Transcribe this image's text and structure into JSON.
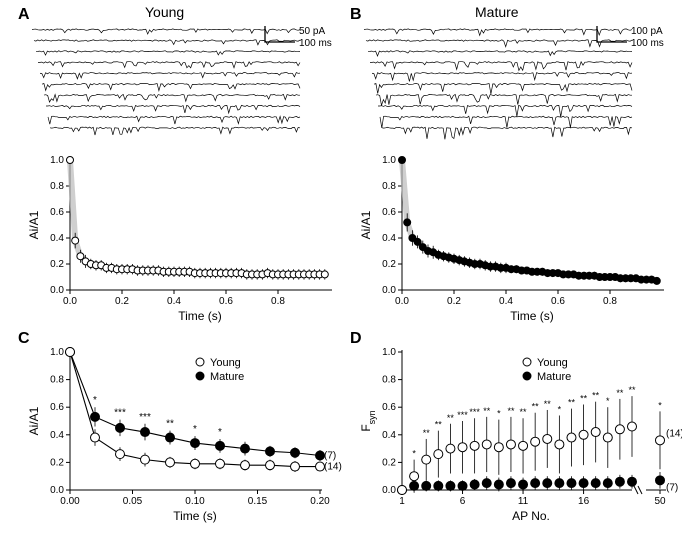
{
  "colors": {
    "bg": "#ffffff",
    "line": "#000000",
    "marker_open_fill": "#ffffff",
    "marker_closed_fill": "#000000",
    "marker_stroke": "#000000",
    "fit_gray": "#bbbbbb",
    "text": "#000000"
  },
  "typography": {
    "panel_label_pt": 16,
    "col_title_pt": 14,
    "axis_label_pt": 12,
    "tick_pt": 10,
    "legend_pt": 11
  },
  "panels": {
    "A": {
      "label": "A",
      "title": "Young",
      "scalebar": {
        "v_label": "50 pA",
        "h_label": "100 ms"
      },
      "n_sweeps": 10,
      "sweep_len": 200
    },
    "B": {
      "label": "B",
      "title": "Mature",
      "scalebar": {
        "v_label": "100 pA",
        "h_label": "100 ms"
      },
      "n_sweeps": 10,
      "sweep_len": 200
    },
    "C": {
      "label": "C",
      "legend": [
        {
          "marker": "open",
          "label": "Young",
          "series": "young"
        },
        {
          "marker": "closed",
          "label": "Mature",
          "series": "mature"
        }
      ],
      "n_young": "(14)",
      "n_mature": "(7)"
    },
    "D": {
      "label": "D",
      "legend": [
        {
          "marker": "open",
          "label": "Young",
          "series": "young"
        },
        {
          "marker": "closed",
          "label": "Mature",
          "series": "mature"
        }
      ],
      "n_young": "(14)",
      "n_mature": "(7)"
    }
  },
  "chart_Atrain": {
    "type": "line",
    "marker": "open",
    "xlim": [
      0.0,
      1.0
    ],
    "ylim": [
      0.0,
      1.0
    ],
    "xticks": [
      0.0,
      0.2,
      0.4,
      0.6,
      0.8
    ],
    "yticks": [
      0.0,
      0.2,
      0.4,
      0.6,
      0.8,
      1.0
    ],
    "xlabel": "Time (s)",
    "ylabel": "Ai/A1",
    "tick_fontsize": 10,
    "label_fontsize": 12,
    "marker_size": 3.5,
    "errorbar_color": "#000000",
    "x": [
      0.0,
      0.02,
      0.04,
      0.06,
      0.08,
      0.1,
      0.12,
      0.14,
      0.16,
      0.18,
      0.2,
      0.22,
      0.24,
      0.26,
      0.28,
      0.3,
      0.32,
      0.34,
      0.36,
      0.38,
      0.4,
      0.42,
      0.44,
      0.46,
      0.48,
      0.5,
      0.52,
      0.54,
      0.56,
      0.58,
      0.6,
      0.62,
      0.64,
      0.66,
      0.68,
      0.7,
      0.72,
      0.74,
      0.76,
      0.78,
      0.8,
      0.82,
      0.84,
      0.86,
      0.88,
      0.9,
      0.92,
      0.94,
      0.96,
      0.98
    ],
    "y": [
      1.0,
      0.38,
      0.26,
      0.22,
      0.2,
      0.19,
      0.19,
      0.17,
      0.17,
      0.16,
      0.16,
      0.16,
      0.16,
      0.15,
      0.15,
      0.15,
      0.15,
      0.15,
      0.14,
      0.14,
      0.14,
      0.14,
      0.14,
      0.14,
      0.13,
      0.13,
      0.13,
      0.13,
      0.13,
      0.13,
      0.13,
      0.13,
      0.13,
      0.13,
      0.12,
      0.12,
      0.12,
      0.12,
      0.13,
      0.12,
      0.12,
      0.12,
      0.12,
      0.12,
      0.12,
      0.12,
      0.12,
      0.12,
      0.12,
      0.12
    ],
    "err": [
      0.0,
      0.06,
      0.05,
      0.05,
      0.04,
      0.04,
      0.04,
      0.04,
      0.04,
      0.04,
      0.04,
      0.04,
      0.04,
      0.04,
      0.04,
      0.04,
      0.04,
      0.04,
      0.04,
      0.04,
      0.04,
      0.04,
      0.04,
      0.04,
      0.04,
      0.04,
      0.04,
      0.04,
      0.04,
      0.04,
      0.04,
      0.04,
      0.04,
      0.04,
      0.04,
      0.04,
      0.04,
      0.04,
      0.04,
      0.04,
      0.04,
      0.04,
      0.04,
      0.04,
      0.04,
      0.04,
      0.04,
      0.04,
      0.04,
      0.04
    ]
  },
  "chart_Btrain": {
    "type": "line",
    "marker": "closed",
    "xlim": [
      0.0,
      1.0
    ],
    "ylim": [
      0.0,
      1.0
    ],
    "xticks": [
      0.0,
      0.2,
      0.4,
      0.6,
      0.8
    ],
    "yticks": [
      0.0,
      0.2,
      0.4,
      0.6,
      0.8,
      1.0
    ],
    "xlabel": "Time (s)",
    "ylabel": "Ai/A1",
    "tick_fontsize": 10,
    "label_fontsize": 12,
    "marker_size": 3.5,
    "errorbar_color": "#000000",
    "x": [
      0.0,
      0.02,
      0.04,
      0.06,
      0.08,
      0.1,
      0.12,
      0.14,
      0.16,
      0.18,
      0.2,
      0.22,
      0.24,
      0.26,
      0.28,
      0.3,
      0.32,
      0.34,
      0.36,
      0.38,
      0.4,
      0.42,
      0.44,
      0.46,
      0.48,
      0.5,
      0.52,
      0.54,
      0.56,
      0.58,
      0.6,
      0.62,
      0.64,
      0.66,
      0.68,
      0.7,
      0.72,
      0.74,
      0.76,
      0.78,
      0.8,
      0.82,
      0.84,
      0.86,
      0.88,
      0.9,
      0.92,
      0.94,
      0.96,
      0.98
    ],
    "y": [
      1.0,
      0.52,
      0.4,
      0.37,
      0.33,
      0.3,
      0.29,
      0.27,
      0.26,
      0.25,
      0.24,
      0.23,
      0.22,
      0.21,
      0.2,
      0.2,
      0.19,
      0.18,
      0.18,
      0.17,
      0.17,
      0.16,
      0.16,
      0.15,
      0.15,
      0.14,
      0.14,
      0.14,
      0.13,
      0.13,
      0.13,
      0.12,
      0.12,
      0.12,
      0.11,
      0.11,
      0.11,
      0.11,
      0.1,
      0.1,
      0.1,
      0.1,
      0.09,
      0.09,
      0.09,
      0.09,
      0.08,
      0.08,
      0.08,
      0.07
    ],
    "err": [
      0.0,
      0.07,
      0.06,
      0.05,
      0.05,
      0.05,
      0.05,
      0.04,
      0.04,
      0.04,
      0.04,
      0.04,
      0.04,
      0.04,
      0.04,
      0.04,
      0.04,
      0.04,
      0.04,
      0.04,
      0.04,
      0.03,
      0.03,
      0.03,
      0.03,
      0.03,
      0.03,
      0.03,
      0.03,
      0.03,
      0.03,
      0.03,
      0.03,
      0.03,
      0.03,
      0.03,
      0.03,
      0.03,
      0.03,
      0.03,
      0.03,
      0.03,
      0.03,
      0.03,
      0.03,
      0.03,
      0.03,
      0.03,
      0.03,
      0.03
    ]
  },
  "chart_C": {
    "type": "line",
    "xlim": [
      0.0,
      0.2
    ],
    "ylim": [
      0.0,
      1.0
    ],
    "xticks": [
      0.0,
      0.05,
      0.1,
      0.15,
      0.2
    ],
    "yticks": [
      0.0,
      0.2,
      0.4,
      0.6,
      0.8,
      1.0
    ],
    "xlabel": "Time (s)",
    "ylabel": "Ai/A1",
    "tick_fontsize": 10,
    "label_fontsize": 12,
    "marker_size": 4.5,
    "line_width": 1.2,
    "series": {
      "young": {
        "marker": "open",
        "x": [
          0.0,
          0.02,
          0.04,
          0.06,
          0.08,
          0.1,
          0.12,
          0.14,
          0.16,
          0.18,
          0.2
        ],
        "y": [
          1.0,
          0.38,
          0.26,
          0.22,
          0.2,
          0.19,
          0.19,
          0.18,
          0.18,
          0.17,
          0.17
        ],
        "err": [
          0.0,
          0.06,
          0.05,
          0.05,
          0.04,
          0.04,
          0.04,
          0.04,
          0.04,
          0.04,
          0.03
        ]
      },
      "mature": {
        "marker": "closed",
        "x": [
          0.0,
          0.02,
          0.04,
          0.06,
          0.08,
          0.1,
          0.12,
          0.14,
          0.16,
          0.18,
          0.2
        ],
        "y": [
          1.0,
          0.53,
          0.45,
          0.42,
          0.38,
          0.34,
          0.32,
          0.3,
          0.28,
          0.27,
          0.25
        ],
        "err": [
          0.0,
          0.07,
          0.06,
          0.06,
          0.05,
          0.05,
          0.05,
          0.05,
          0.04,
          0.04,
          0.04
        ]
      }
    },
    "sig": [
      {
        "x": 0.02,
        "label": "*"
      },
      {
        "x": 0.04,
        "label": "***"
      },
      {
        "x": 0.06,
        "label": "***"
      },
      {
        "x": 0.08,
        "label": "**"
      },
      {
        "x": 0.1,
        "label": "*"
      },
      {
        "x": 0.12,
        "label": "*"
      }
    ]
  },
  "chart_D": {
    "type": "scatter",
    "xlim": [
      1,
      20
    ],
    "xlim_break": 50,
    "ylim": [
      0.0,
      1.0
    ],
    "xticks": [
      1,
      6,
      11,
      16
    ],
    "yticks": [
      0.0,
      0.2,
      0.4,
      0.6,
      0.8,
      1.0
    ],
    "xlabel": "AP No.",
    "ylabel": "F",
    "ylabel_sub": "syn",
    "tick_fontsize": 10,
    "label_fontsize": 12,
    "marker_size": 4.5,
    "series": {
      "young": {
        "marker": "open",
        "x": [
          1,
          2,
          3,
          4,
          5,
          6,
          7,
          8,
          9,
          10,
          11,
          12,
          13,
          14,
          15,
          16,
          17,
          18,
          19,
          20,
          50
        ],
        "y": [
          0.0,
          0.1,
          0.22,
          0.26,
          0.3,
          0.31,
          0.32,
          0.33,
          0.31,
          0.33,
          0.32,
          0.35,
          0.37,
          0.33,
          0.38,
          0.4,
          0.42,
          0.38,
          0.44,
          0.46,
          0.36
        ],
        "err": [
          0.0,
          0.12,
          0.15,
          0.17,
          0.18,
          0.19,
          0.2,
          0.2,
          0.2,
          0.2,
          0.2,
          0.21,
          0.21,
          0.21,
          0.21,
          0.22,
          0.22,
          0.22,
          0.22,
          0.22,
          0.21
        ]
      },
      "mature": {
        "marker": "closed",
        "x": [
          1,
          2,
          3,
          4,
          5,
          6,
          7,
          8,
          9,
          10,
          11,
          12,
          13,
          14,
          15,
          16,
          17,
          18,
          19,
          20,
          50
        ],
        "y": [
          0.0,
          0.03,
          0.03,
          0.03,
          0.03,
          0.03,
          0.04,
          0.05,
          0.04,
          0.05,
          0.04,
          0.05,
          0.05,
          0.05,
          0.05,
          0.05,
          0.05,
          0.05,
          0.06,
          0.06,
          0.07
        ],
        "err": [
          0.0,
          0.04,
          0.04,
          0.04,
          0.04,
          0.04,
          0.04,
          0.05,
          0.05,
          0.05,
          0.05,
          0.05,
          0.05,
          0.05,
          0.05,
          0.05,
          0.05,
          0.05,
          0.05,
          0.05,
          0.06
        ]
      }
    },
    "sig": [
      {
        "x": 2,
        "label": "*"
      },
      {
        "x": 3,
        "label": "**"
      },
      {
        "x": 4,
        "label": "**"
      },
      {
        "x": 5,
        "label": "**"
      },
      {
        "x": 6,
        "label": "***"
      },
      {
        "x": 7,
        "label": "***"
      },
      {
        "x": 8,
        "label": "**"
      },
      {
        "x": 9,
        "label": "*"
      },
      {
        "x": 10,
        "label": "**"
      },
      {
        "x": 11,
        "label": "**"
      },
      {
        "x": 12,
        "label": "**"
      },
      {
        "x": 13,
        "label": "**"
      },
      {
        "x": 14,
        "label": "*"
      },
      {
        "x": 15,
        "label": "**"
      },
      {
        "x": 16,
        "label": "**"
      },
      {
        "x": 17,
        "label": "**"
      },
      {
        "x": 18,
        "label": "*"
      },
      {
        "x": 19,
        "label": "**"
      },
      {
        "x": 20,
        "label": "**"
      },
      {
        "x": 50,
        "label": "*"
      }
    ]
  }
}
